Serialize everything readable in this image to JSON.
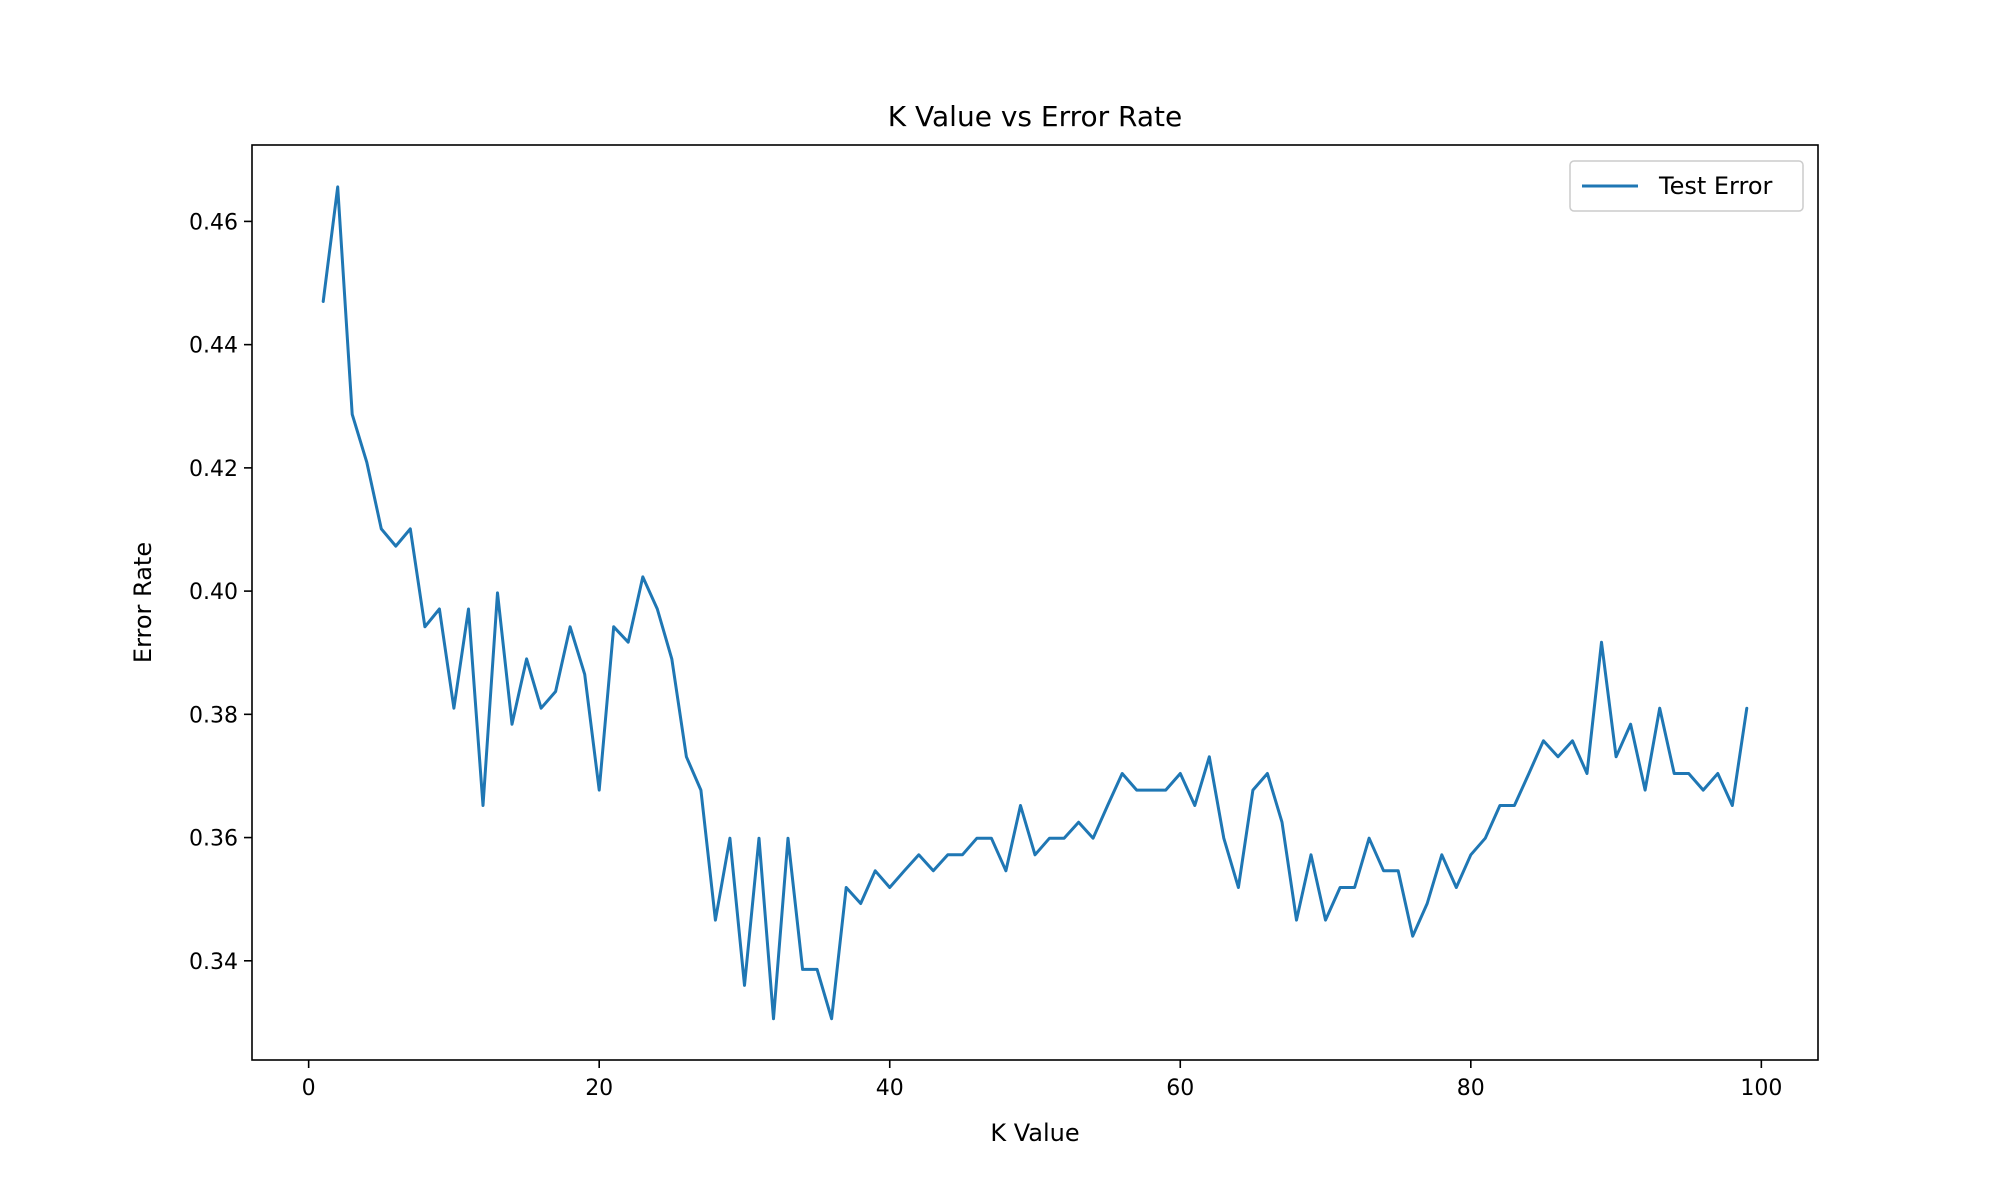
{
  "chart_data": {
    "type": "line",
    "title": "K Value vs Error Rate",
    "xlabel": "K Value",
    "ylabel": "Error Rate",
    "xlim": [
      -3.9,
      103.9
    ],
    "ylim": [
      0.3239,
      0.4724
    ],
    "xticks": [
      0,
      20,
      40,
      60,
      80,
      100
    ],
    "yticks": [
      0.34,
      0.36,
      0.38,
      0.4,
      0.42,
      0.44,
      0.46
    ],
    "xtick_labels": [
      "0",
      "20",
      "40",
      "60",
      "80",
      "100"
    ],
    "ytick_labels": [
      "0.34",
      "0.36",
      "0.38",
      "0.40",
      "0.42",
      "0.44",
      "0.46"
    ],
    "grid": false,
    "legend_position": "top-right",
    "series": [
      {
        "name": "Test Error",
        "color": "#1f77b4",
        "x": [
          1,
          2,
          3,
          4,
          5,
          6,
          7,
          8,
          9,
          10,
          11,
          12,
          13,
          14,
          15,
          16,
          17,
          18,
          19,
          20,
          21,
          22,
          23,
          24,
          25,
          26,
          27,
          28,
          29,
          30,
          31,
          32,
          33,
          34,
          35,
          36,
          37,
          38,
          39,
          40,
          41,
          42,
          43,
          44,
          45,
          46,
          47,
          48,
          49,
          50,
          51,
          52,
          53,
          54,
          55,
          56,
          57,
          58,
          59,
          60,
          61,
          62,
          63,
          64,
          65,
          66,
          67,
          68,
          69,
          70,
          71,
          72,
          73,
          74,
          75,
          76,
          77,
          78,
          79,
          80,
          81,
          82,
          83,
          84,
          85,
          86,
          87,
          88,
          89,
          90,
          91,
          92,
          93,
          94,
          95,
          96,
          97,
          98,
          99
        ],
        "y": [
          0.447,
          0.4656,
          0.4287,
          0.4209,
          0.4101,
          0.4073,
          0.4101,
          0.3942,
          0.3971,
          0.381,
          0.3971,
          0.3652,
          0.3997,
          0.3784,
          0.389,
          0.381,
          0.3837,
          0.3942,
          0.3865,
          0.3677,
          0.3942,
          0.3917,
          0.4023,
          0.3971,
          0.389,
          0.3731,
          0.3677,
          0.3466,
          0.3599,
          0.336,
          0.3599,
          0.3306,
          0.3599,
          0.3386,
          0.3386,
          0.3306,
          0.3519,
          0.3493,
          0.3546,
          0.3519,
          0.3546,
          0.3572,
          0.3546,
          0.3572,
          0.3572,
          0.3599,
          0.3599,
          0.3546,
          0.3652,
          0.3572,
          0.3599,
          0.3599,
          0.3625,
          0.3599,
          0.3652,
          0.3704,
          0.3677,
          0.3677,
          0.3677,
          0.3704,
          0.3652,
          0.3731,
          0.3599,
          0.3519,
          0.3677,
          0.3704,
          0.3625,
          0.3466,
          0.3572,
          0.3466,
          0.3519,
          0.3519,
          0.3599,
          0.3546,
          0.3546,
          0.344,
          0.3493,
          0.3572,
          0.3519,
          0.3572,
          0.3599,
          0.3652,
          0.3652,
          0.3704,
          0.3757,
          0.3731,
          0.3757,
          0.3704,
          0.3917,
          0.3731,
          0.3784,
          0.3677,
          0.381,
          0.3704,
          0.3704,
          0.3677,
          0.3704,
          0.3652,
          0.381
        ]
      }
    ]
  }
}
